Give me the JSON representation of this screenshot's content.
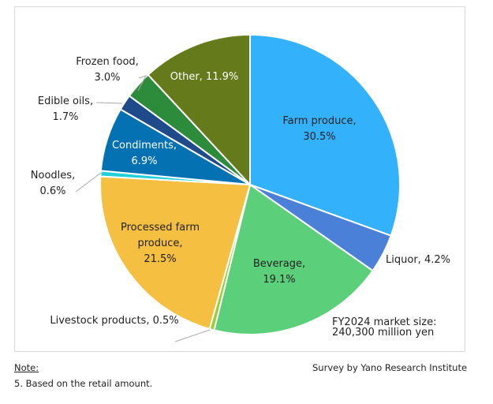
{
  "chart_data": {
    "type": "pie",
    "start": "top, clockwise",
    "slices": [
      {
        "name": "Farm produce",
        "value": 30.5,
        "label": [
          "Farm produce,",
          "30.5%"
        ],
        "color": "#33b2fb",
        "text": "dark"
      },
      {
        "name": "Liquor",
        "value": 4.2,
        "label": [
          "Liquor, 4.2%"
        ],
        "color": "#4a80d8",
        "text": "dark"
      },
      {
        "name": "Beverage",
        "value": 19.1,
        "label": [
          "Beverage,",
          "19.1%"
        ],
        "color": "#5ccf7a",
        "text": "dark"
      },
      {
        "name": "Livestock products",
        "value": 0.5,
        "label": [
          "Livestock products, 0.5%"
        ],
        "color": "#9acd32",
        "text": "dark"
      },
      {
        "name": "Processed farm produce",
        "value": 21.5,
        "label": [
          "Processed farm",
          "produce,",
          "21.5%"
        ],
        "color": "#f5bf42",
        "text": "dark"
      },
      {
        "name": "Noodles",
        "value": 0.6,
        "label": [
          "Noodles,",
          "0.6%"
        ],
        "color": "#20d0d8",
        "text": "dark"
      },
      {
        "name": "Condiments",
        "value": 6.9,
        "label": [
          "Condiments,",
          "6.9%"
        ],
        "color": "#0471b2",
        "text": "light"
      },
      {
        "name": "Edible oils",
        "value": 1.7,
        "label": [
          "Edible oils,",
          "1.7%"
        ],
        "color": "#1f4b8a",
        "text": "dark"
      },
      {
        "name": "Frozen food",
        "value": 3.0,
        "label": [
          "Frozen food,",
          "3.0%"
        ],
        "color": "#2d8c3c",
        "text": "dark"
      },
      {
        "name": "Other",
        "value": 11.9,
        "label": [
          "Other, 11.9%"
        ],
        "color": "#657b1b",
        "text": "light"
      }
    ],
    "annotation": [
      "FY2024 market size:",
      "240,300 million yen"
    ]
  },
  "notes": {
    "heading": "Note:",
    "text": "5. Based on the retail amount.",
    "source": "Survey by Yano Research Institute"
  }
}
